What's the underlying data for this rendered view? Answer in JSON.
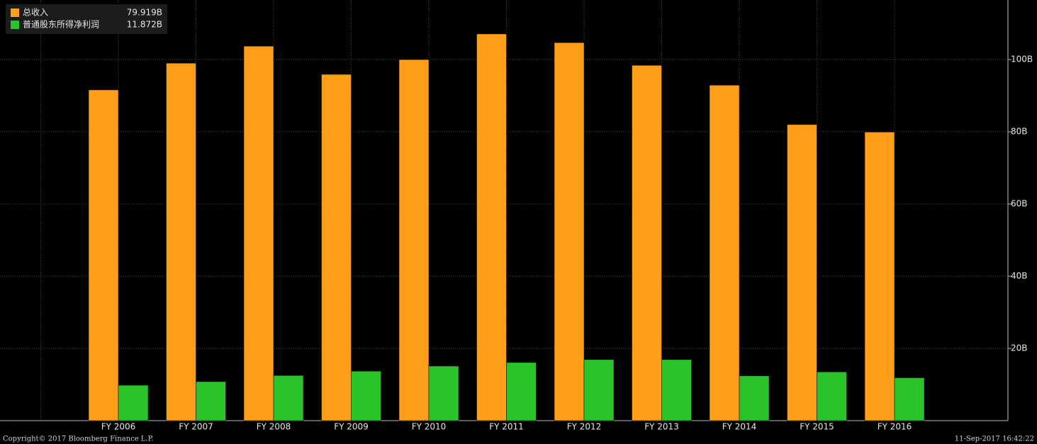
{
  "chart_data": {
    "type": "bar",
    "categories": [
      "FY 2006",
      "FY 2007",
      "FY 2008",
      "FY 2009",
      "FY 2010",
      "FY 2011",
      "FY 2012",
      "FY 2013",
      "FY 2014",
      "FY 2015",
      "FY 2016"
    ],
    "series": [
      {
        "name": "总收入",
        "color": "#ff9e18",
        "legend_value": "79.919B",
        "values": [
          91.6,
          99.0,
          103.7,
          95.9,
          100.0,
          107.1,
          104.7,
          98.4,
          92.9,
          82.0,
          79.919
        ]
      },
      {
        "name": "普通股东所得净利润",
        "color": "#2ac42a",
        "legend_value": "11.872B",
        "values": [
          9.8,
          10.8,
          12.5,
          13.7,
          15.1,
          16.1,
          16.9,
          16.9,
          12.4,
          13.5,
          11.872
        ]
      }
    ],
    "ylim": [
      0,
      116.5
    ],
    "yticks": [
      {
        "value": 20,
        "label": "20B"
      },
      {
        "value": 40,
        "label": "40B"
      },
      {
        "value": 60,
        "label": "60B"
      },
      {
        "value": 80,
        "label": "80B"
      },
      {
        "value": 100,
        "label": "100B"
      }
    ],
    "grid": true,
    "y_axis_side": "right",
    "copyright": "Copyright© 2017 Bloomberg Finance L.P.",
    "timestamp": "11-Sep-2017 16:42:22"
  }
}
